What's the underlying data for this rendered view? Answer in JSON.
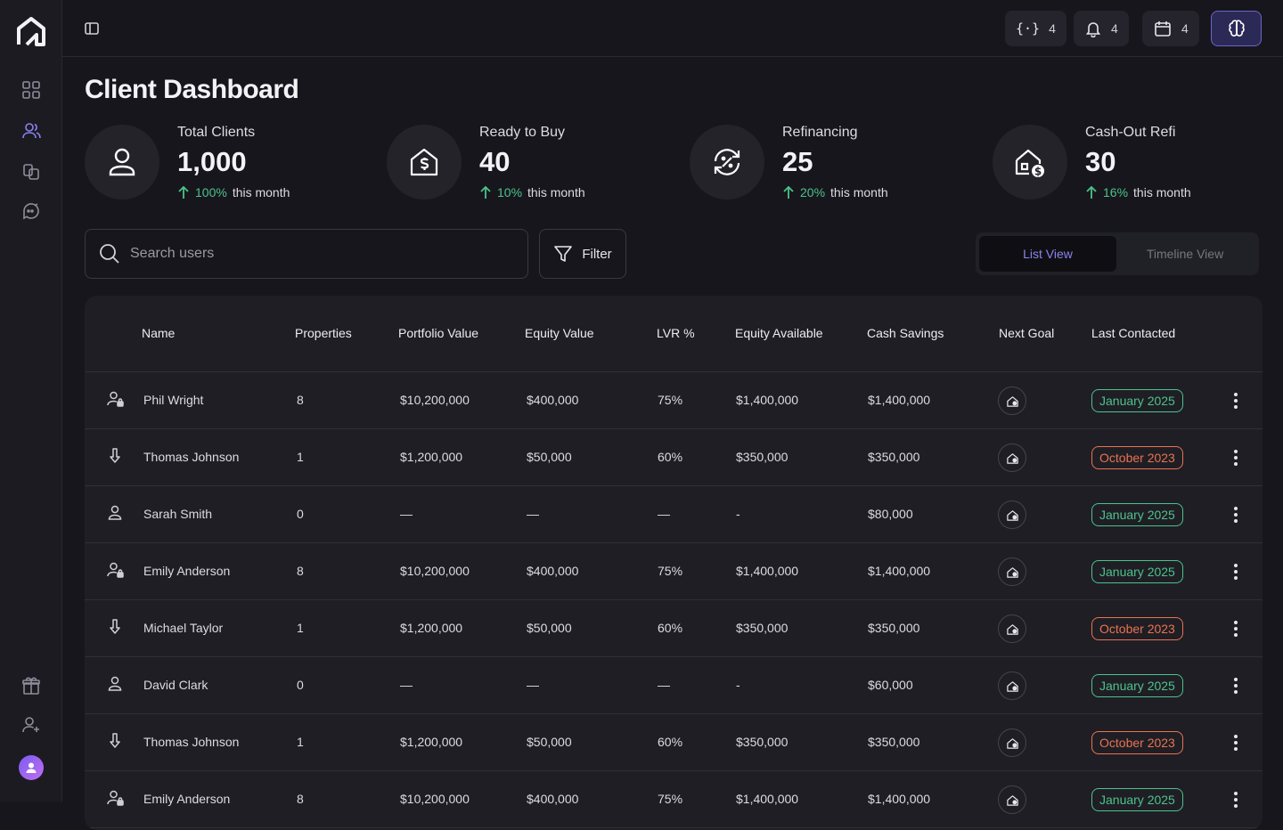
{
  "page": {
    "title": "Client Dashboard"
  },
  "topbar": {
    "integrations_count": "4",
    "notifications_count": "4",
    "calendar_count": "4"
  },
  "stats": [
    {
      "label": "Total Clients",
      "value": "1,000",
      "pct": "100%",
      "suffix": "this month",
      "icon": "user-icon"
    },
    {
      "label": "Ready to Buy",
      "value": "40",
      "pct": "10%",
      "suffix": "this month",
      "icon": "house-dollar-icon"
    },
    {
      "label": "Refinancing",
      "value": "25",
      "pct": "20%",
      "suffix": "this month",
      "icon": "refresh-percent-icon"
    },
    {
      "label": "Cash-Out Refi",
      "value": "30",
      "pct": "16%",
      "suffix": "this month",
      "icon": "house-coin-icon"
    }
  ],
  "search": {
    "placeholder": "Search users"
  },
  "filter_label": "Filter",
  "views": {
    "list": "List View",
    "timeline": "Timeline View"
  },
  "table": {
    "headers": [
      "Name",
      "Properties",
      "Portfolio Value",
      "Equity Value",
      "LVR %",
      "Equity Available",
      "Cash Savings",
      "Next Goal",
      "Last Contacted"
    ],
    "rows": [
      {
        "icon": "user-lock-icon",
        "name": "Phil Wright",
        "properties": "8",
        "portfolio": "$10,200,000",
        "equity": "$400,000",
        "lvr": "75%",
        "equity_available": "$1,400,000",
        "cash": "$1,400,000",
        "last_contacted": "January 2025",
        "status": "green"
      },
      {
        "icon": "arrow-down-icon",
        "name": "Thomas Johnson",
        "properties": "1",
        "portfolio": "$1,200,000",
        "equity": "$50,000",
        "lvr": "60%",
        "equity_available": "$350,000",
        "cash": "$350,000",
        "last_contacted": "October 2023",
        "status": "orange"
      },
      {
        "icon": "user-icon",
        "name": "Sarah Smith",
        "properties": "0",
        "portfolio": "—",
        "equity": "—",
        "lvr": "—",
        "equity_available": "-",
        "cash": "$80,000",
        "last_contacted": "January 2025",
        "status": "green"
      },
      {
        "icon": "user-lock-icon",
        "name": "Emily Anderson",
        "properties": "8",
        "portfolio": "$10,200,000",
        "equity": "$400,000",
        "lvr": "75%",
        "equity_available": "$1,400,000",
        "cash": "$1,400,000",
        "last_contacted": "January 2025",
        "status": "green"
      },
      {
        "icon": "arrow-down-icon",
        "name": "Michael Taylor",
        "properties": "1",
        "portfolio": "$1,200,000",
        "equity": "$50,000",
        "lvr": "60%",
        "equity_available": "$350,000",
        "cash": "$350,000",
        "last_contacted": "October 2023",
        "status": "orange"
      },
      {
        "icon": "user-icon",
        "name": "David Clark",
        "properties": "0",
        "portfolio": "—",
        "equity": "—",
        "lvr": "—",
        "equity_available": "-",
        "cash": "$60,000",
        "last_contacted": "January 2025",
        "status": "green"
      },
      {
        "icon": "arrow-down-icon",
        "name": "Thomas Johnson",
        "properties": "1",
        "portfolio": "$1,200,000",
        "equity": "$50,000",
        "lvr": "60%",
        "equity_available": "$350,000",
        "cash": "$350,000",
        "last_contacted": "October 2023",
        "status": "orange"
      },
      {
        "icon": "user-lock-icon",
        "name": "Emily Anderson",
        "properties": "8",
        "portfolio": "$10,200,000",
        "equity": "$400,000",
        "lvr": "75%",
        "equity_available": "$1,400,000",
        "cash": "$1,400,000",
        "last_contacted": "January 2025",
        "status": "green"
      }
    ]
  },
  "colors": {
    "accent": "#8b83ee",
    "positive": "#4cc38a",
    "warning": "#e8734f",
    "background": "#17161d"
  }
}
